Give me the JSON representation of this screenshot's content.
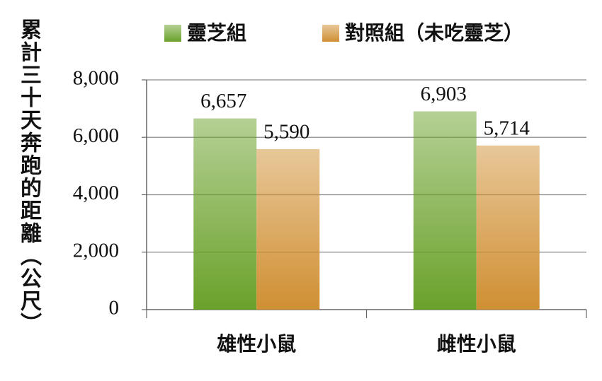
{
  "chart_data": {
    "type": "bar",
    "y_axis_label": "累計三十天奔跑的距離（公尺）",
    "categories": [
      "雄性小鼠",
      "雌性小鼠"
    ],
    "series": [
      {
        "name": "靈芝組",
        "color": "#6aa12a",
        "values": [
          6657,
          6903
        ],
        "value_labels": [
          "6,657",
          "6,903"
        ]
      },
      {
        "name": "對照組（未吃靈芝）",
        "color": "#d08f32",
        "values": [
          5590,
          5714
        ],
        "value_labels": [
          "5,590",
          "5,714"
        ]
      }
    ],
    "ylim": [
      0,
      8000
    ],
    "yticks": [
      0,
      {
        "value": 2000,
        "label": "2,000"
      },
      {
        "value": 4000,
        "label": "4,000"
      },
      {
        "value": 6000,
        "label": "6,000"
      },
      {
        "value": 8000,
        "label": "8,000"
      }
    ],
    "grid": true
  }
}
